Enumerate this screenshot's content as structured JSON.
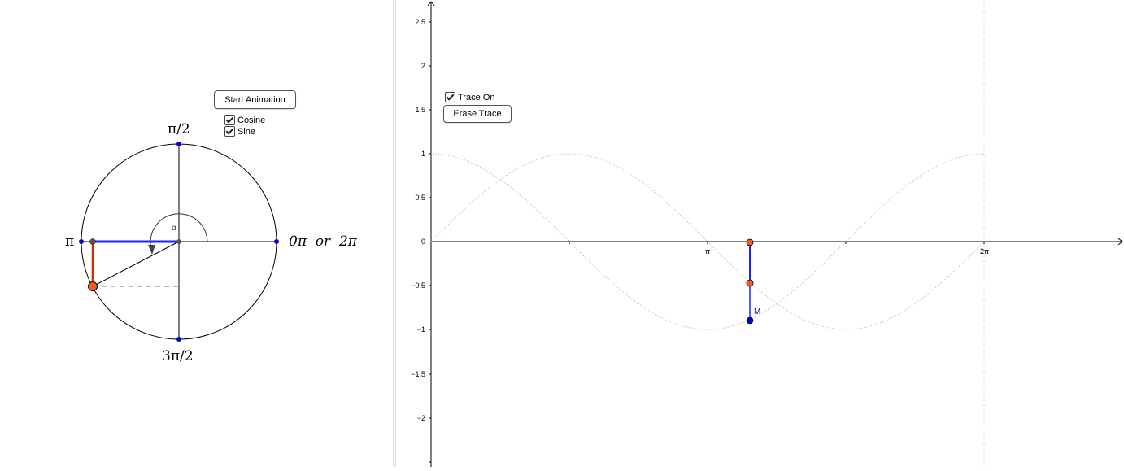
{
  "left_panel": {
    "start_animation_label": "Start Animation",
    "cosine_label": "Cosine",
    "cosine_checked": true,
    "sine_label": "Sine",
    "sine_checked": true,
    "label_top": "π/2",
    "label_left": "π",
    "label_right": "0π  or  2π",
    "label_bottom": "3π/2",
    "angle_label": "α"
  },
  "right_panel": {
    "trace_on_label": "Trace On",
    "trace_on_checked": true,
    "erase_trace_label": "Erase Trace",
    "point_label": "M",
    "y_ticks": [
      "2.5",
      "2",
      "1.5",
      "1",
      "0.5",
      "0",
      "−0.5",
      "−1",
      "−1.5",
      "−2"
    ],
    "x_ticks": [
      "π",
      "2π"
    ]
  },
  "colors": {
    "point_orange": "#f05a23",
    "point_blue": "#0000cc",
    "segment_blue": "#2020ff",
    "segment_red": "#cc3300",
    "trace_gray": "#b0b0b0"
  }
}
